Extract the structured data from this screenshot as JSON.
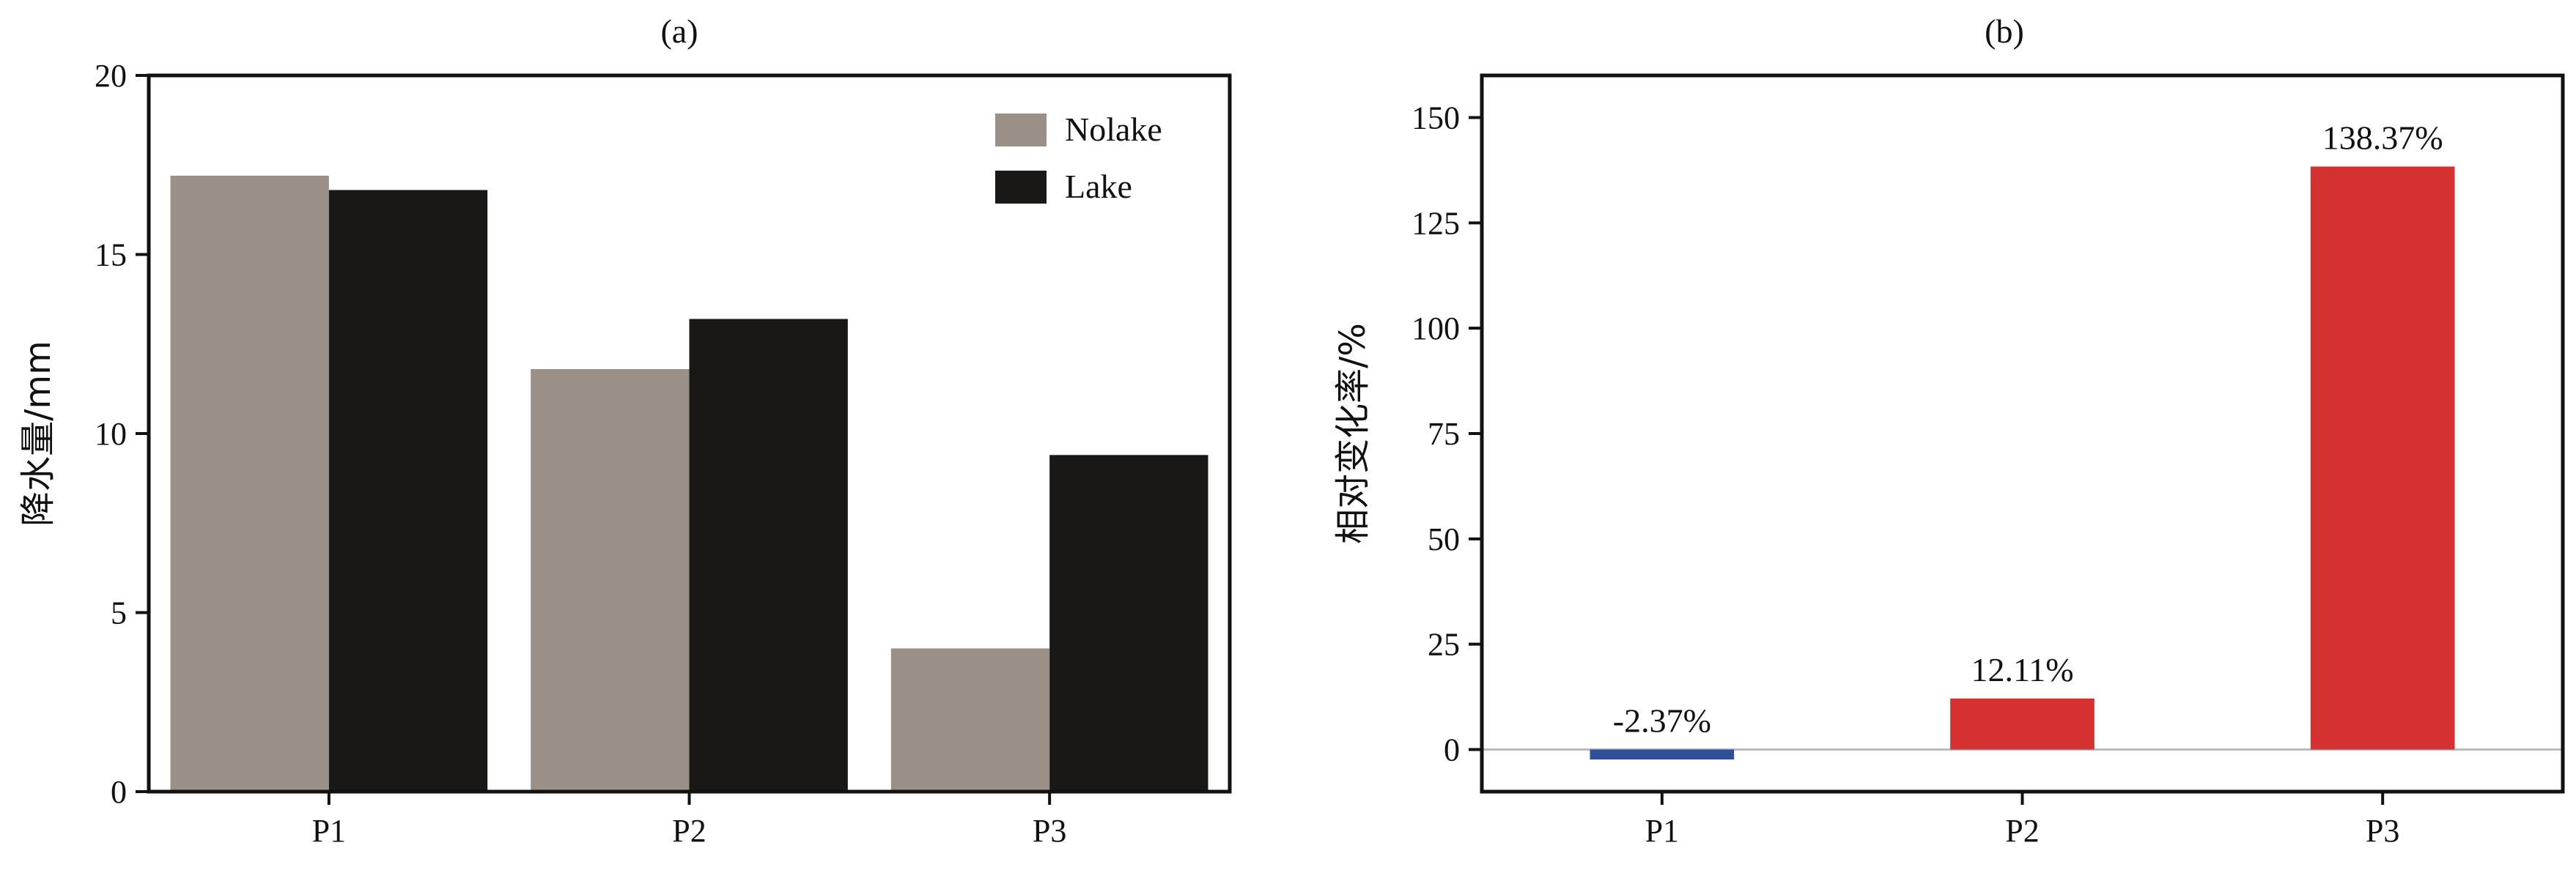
{
  "chart_data": [
    {
      "panel_label": "(a)",
      "type": "bar",
      "categories": [
        "P1",
        "P2",
        "P3"
      ],
      "series": [
        {
          "name": "Nolake",
          "values": [
            17.2,
            11.8,
            4.0
          ],
          "color": "#9a9088"
        },
        {
          "name": "Lake",
          "values": [
            16.8,
            13.2,
            9.4
          ],
          "color": "#1a1816"
        }
      ],
      "title": "",
      "xlabel": "",
      "ylabel": "降水量/mm",
      "ylim": [
        0,
        20
      ],
      "yticks": [
        0,
        5,
        10,
        15,
        20
      ],
      "legend_position": "top-right",
      "grid": false
    },
    {
      "panel_label": "(b)",
      "type": "bar",
      "categories": [
        "P1",
        "P2",
        "P3"
      ],
      "values": [
        -2.37,
        12.11,
        138.37
      ],
      "value_labels": [
        "-2.37%",
        "12.11%",
        "138.37%"
      ],
      "colors": [
        "#2f4f9a",
        "#d63131",
        "#d63131"
      ],
      "title": "",
      "xlabel": "",
      "ylabel": "相对变化率/%",
      "ylim": [
        -10,
        160
      ],
      "yticks": [
        0,
        25,
        50,
        75,
        100,
        125,
        150
      ],
      "zero_line": true,
      "grid": false
    }
  ]
}
